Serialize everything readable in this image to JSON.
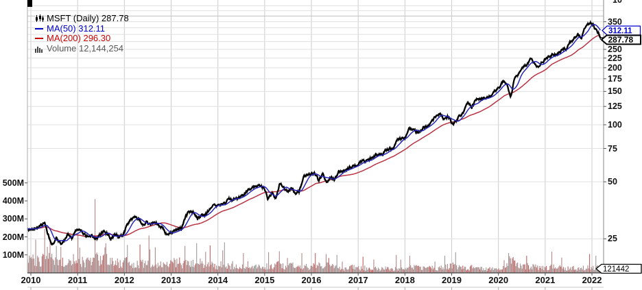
{
  "legend": {
    "symbol_label": "MSFT (Daily) 287.78",
    "ma50_label": "MA(50) 312.11",
    "ma200_label": "MA(200) 296.30",
    "volume_label": "Volume 12,144,254"
  },
  "callouts": {
    "ma50": "312.11",
    "last_price": "287.78",
    "last_volume": "121442"
  },
  "clipped_top_label": "10",
  "colors": {
    "price": "#000000",
    "ma50": "#2626b8",
    "ma200": "#bb3344",
    "ma50_text": "#0000cc",
    "ma200_text": "#cc0000",
    "volume_text": "#5a5a5a",
    "volume_bar": "#b18989",
    "volume_bar_red": "#c26060",
    "volume_bar_gray": "#9b9b9b",
    "grid_vertical": "#cccccc",
    "grid_horizontal": "#e0e0e0",
    "grid_dark": "#c0c0c0",
    "axis_line": "#555555",
    "callout_price_border": "#000000",
    "callout_ma50_border": "#0000cc"
  },
  "axes": {
    "price_ticks": [
      350,
      250,
      225,
      200,
      175,
      150,
      125,
      100,
      75,
      50,
      25
    ],
    "grid_prices": [
      425,
      400,
      375,
      350,
      325,
      300,
      275,
      250,
      225,
      200,
      175,
      150,
      125,
      100,
      75,
      50,
      25
    ],
    "volume_ticks": [
      {
        "label": "500M",
        "value": 500
      },
      {
        "label": "400M",
        "value": 400
      },
      {
        "label": "300M",
        "value": 300
      },
      {
        "label": "200M",
        "value": 200
      },
      {
        "label": "100M",
        "value": 100
      }
    ],
    "years": [
      2010,
      2011,
      2012,
      2013,
      2014,
      2015,
      2016,
      2017,
      2018,
      2019,
      2020,
      2021,
      2022
    ],
    "price_scale": "log"
  },
  "chart_data": {
    "type": "candlestick",
    "symbol": "MSFT",
    "timeframe": "Daily",
    "title": "MSFT (Daily) 287.78",
    "legend_position": "top-left",
    "grid": true,
    "x_range": [
      2010,
      2022.2
    ],
    "price_axis_range": [
      22,
      430
    ],
    "volume_axis_range_millions": [
      0,
      560
    ],
    "x_start": 2010.042,
    "x_step": 0.0838,
    "close_monthly": [
      28.2,
      28.7,
      29.3,
      30.5,
      25.8,
      23.0,
      25.8,
      23.5,
      24.5,
      26.7,
      25.3,
      27.9,
      27.7,
      26.6,
      25.4,
      25.9,
      25.0,
      26.0,
      27.4,
      26.6,
      24.9,
      26.6,
      25.6,
      26.0,
      29.5,
      31.7,
      32.3,
      32.0,
      29.2,
      30.6,
      29.5,
      30.8,
      29.8,
      28.5,
      26.6,
      26.7,
      27.5,
      27.8,
      28.6,
      33.1,
      34.9,
      34.5,
      31.8,
      33.4,
      33.3,
      35.4,
      38.1,
      37.4,
      37.8,
      38.3,
      41.0,
      40.4,
      41.0,
      41.7,
      43.2,
      45.4,
      46.4,
      47.0,
      47.8,
      46.4,
      40.4,
      43.9,
      40.7,
      48.6,
      46.9,
      44.2,
      46.7,
      43.5,
      44.3,
      52.6,
      54.3,
      55.5,
      55.1,
      50.9,
      55.2,
      50.0,
      53.0,
      51.2,
      56.7,
      57.5,
      57.6,
      59.9,
      60.3,
      62.1,
      64.7,
      63.9,
      65.9,
      68.5,
      69.8,
      68.9,
      72.7,
      74.8,
      74.5,
      83.2,
      84.2,
      85.5,
      95.0,
      93.8,
      91.3,
      93.5,
      98.8,
      98.6,
      106.1,
      112.3,
      114.4,
      106.8,
      110.9,
      101.6,
      104.4,
      112.0,
      117.9,
      130.6,
      123.7,
      134.0,
      136.3,
      137.9,
      139.0,
      143.4,
      151.4,
      157.7,
      170.2,
      162.0,
      137.0,
      179.2,
      183.3,
      203.5,
      205.0,
      225.5,
      210.3,
      202.5,
      214.1,
      222.4,
      231.9,
      232.4,
      235.8,
      252.2,
      249.7,
      270.9,
      284.9,
      301.9,
      281.9,
      331.6,
      345.0,
      336.3,
      310.9,
      287.78
    ],
    "volume_monthly_avg_millions": [
      68,
      62,
      58,
      85,
      95,
      82,
      72,
      60,
      58,
      55,
      52,
      48,
      60,
      55,
      58,
      52,
      75,
      58,
      62,
      68,
      58,
      52,
      48,
      50,
      58,
      50,
      45,
      42,
      48,
      42,
      40,
      34,
      38,
      44,
      52,
      46,
      52,
      48,
      42,
      58,
      44,
      50,
      62,
      44,
      38,
      44,
      40,
      34,
      42,
      36,
      34,
      40,
      34,
      30,
      38,
      34,
      30,
      34,
      30,
      28,
      36,
      30,
      34,
      46,
      30,
      28,
      38,
      34,
      30,
      36,
      30,
      26,
      40,
      36,
      30,
      38,
      28,
      34,
      32,
      24,
      24,
      28,
      28,
      24,
      28,
      24,
      22,
      24,
      22,
      24,
      22,
      18,
      18,
      22,
      22,
      18,
      28,
      34,
      34,
      28,
      24,
      28,
      24,
      20,
      24,
      34,
      34,
      38,
      34,
      28,
      24,
      24,
      28,
      24,
      20,
      24,
      20,
      20,
      20,
      20,
      28,
      34,
      68,
      48,
      34,
      38,
      32,
      38,
      34,
      28,
      28,
      26,
      32,
      28,
      28,
      26,
      26,
      24,
      24,
      22,
      24,
      26,
      28,
      26,
      38,
      34
    ],
    "volume_spikes": [
      {
        "t": 2010.1,
        "v": 185
      },
      {
        "t": 2010.3,
        "v": 245
      },
      {
        "t": 2010.42,
        "v": 200
      },
      {
        "t": 2010.55,
        "v": 150
      },
      {
        "t": 2011.05,
        "v": 140
      },
      {
        "t": 2011.38,
        "v": 410
      },
      {
        "t": 2011.6,
        "v": 165
      },
      {
        "t": 2012.07,
        "v": 155
      },
      {
        "t": 2012.55,
        "v": 130
      },
      {
        "t": 2013.3,
        "v": 150
      },
      {
        "t": 2013.55,
        "v": 165
      },
      {
        "t": 2014.1,
        "v": 125
      },
      {
        "t": 2014.55,
        "v": 110
      },
      {
        "t": 2015.08,
        "v": 115
      },
      {
        "t": 2015.32,
        "v": 120
      },
      {
        "t": 2015.8,
        "v": 110
      },
      {
        "t": 2016.08,
        "v": 110
      },
      {
        "t": 2016.32,
        "v": 105
      },
      {
        "t": 2016.55,
        "v": 100
      },
      {
        "t": 2017.1,
        "v": 90
      },
      {
        "t": 2017.82,
        "v": 100
      },
      {
        "t": 2018.1,
        "v": 95
      },
      {
        "t": 2018.85,
        "v": 95
      },
      {
        "t": 2019.08,
        "v": 115
      },
      {
        "t": 2020.22,
        "v": 110
      },
      {
        "t": 2020.6,
        "v": 95
      },
      {
        "t": 2021.35,
        "v": 85
      },
      {
        "t": 2021.95,
        "v": 105
      },
      {
        "t": 2022.08,
        "v": 95
      }
    ],
    "last_values": {
      "close": 287.78,
      "ma50": 312.11,
      "ma200": 296.3,
      "volume": 12144254,
      "volume_hundreds_label": "121442"
    }
  }
}
